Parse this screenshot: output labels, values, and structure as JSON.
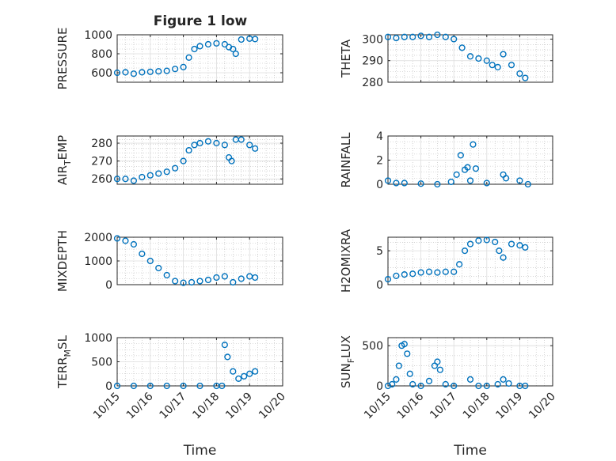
{
  "figure": {
    "title": "Figure 1 low",
    "x_tick_labels": [
      "10/15",
      "10/16",
      "10/17",
      "10/18",
      "10/19",
      "10/20"
    ],
    "xlabel": "Time"
  },
  "colors": {
    "marker": "#0072bd",
    "axes": "#262626",
    "grid": "#b8b8b8",
    "background": "#ffffff"
  },
  "chart_data": [
    {
      "type": "scatter",
      "marker": "open-circle",
      "ylabel": "PRESSURE",
      "ylim": [
        500,
        1000
      ],
      "yticks": [
        600,
        800,
        1000
      ],
      "xlim": [
        "10/15",
        "10/20"
      ],
      "grid": true,
      "x": [
        "10/15 00:00",
        "10/15 06:00",
        "10/15 12:00",
        "10/15 18:00",
        "10/16 00:00",
        "10/16 06:00",
        "10/16 12:00",
        "10/16 18:00",
        "10/17 00:00",
        "10/17 04:00",
        "10/17 08:00",
        "10/17 12:00",
        "10/17 18:00",
        "10/18 00:00",
        "10/18 06:00",
        "10/18 09:00",
        "10/18 12:00",
        "10/18 14:00",
        "10/18 18:00",
        "10/19 00:00",
        "10/19 04:00"
      ],
      "y": [
        600,
        605,
        590,
        605,
        610,
        615,
        620,
        640,
        660,
        760,
        850,
        880,
        900,
        910,
        900,
        870,
        850,
        800,
        950,
        960,
        955
      ]
    },
    {
      "type": "scatter",
      "marker": "open-circle",
      "ylabel": "THETA",
      "ylim": [
        280,
        302
      ],
      "yticks": [
        280,
        290,
        300
      ],
      "xlim": [
        "10/15",
        "10/20"
      ],
      "grid": true,
      "x": [
        "10/15 00:00",
        "10/15 06:00",
        "10/15 12:00",
        "10/15 18:00",
        "10/16 00:00",
        "10/16 06:00",
        "10/16 12:00",
        "10/16 18:00",
        "10/17 00:00",
        "10/17 06:00",
        "10/17 12:00",
        "10/17 18:00",
        "10/18 00:00",
        "10/18 04:00",
        "10/18 08:00",
        "10/18 12:00",
        "10/18 18:00",
        "10/19 00:00",
        "10/19 04:00"
      ],
      "y": [
        301,
        300.5,
        301,
        301,
        301.5,
        301,
        302,
        301,
        300,
        296,
        292,
        291,
        290,
        288,
        287,
        293,
        288,
        284,
        282
      ]
    },
    {
      "type": "scatter",
      "marker": "open-circle",
      "ylabel": "AIR",
      "ylabel_sub": "T",
      "ylabel_tail": "EMP",
      "ylim": [
        257,
        284
      ],
      "yticks": [
        260,
        270,
        280
      ],
      "xlim": [
        "10/15",
        "10/20"
      ],
      "grid": true,
      "x": [
        "10/15 00:00",
        "10/15 06:00",
        "10/15 12:00",
        "10/15 18:00",
        "10/16 00:00",
        "10/16 06:00",
        "10/16 12:00",
        "10/16 18:00",
        "10/17 00:00",
        "10/17 04:00",
        "10/17 08:00",
        "10/17 12:00",
        "10/17 18:00",
        "10/18 00:00",
        "10/18 06:00",
        "10/18 09:00",
        "10/18 11:00",
        "10/18 14:00",
        "10/18 18:00",
        "10/19 00:00",
        "10/19 04:00"
      ],
      "y": [
        260,
        260,
        259,
        261,
        262,
        263,
        264,
        266,
        270,
        276,
        279,
        280,
        281,
        280,
        279,
        272,
        270,
        282,
        282,
        279,
        277
      ]
    },
    {
      "type": "scatter",
      "marker": "open-circle",
      "ylabel": "RAINFALL",
      "ylim": [
        0,
        4
      ],
      "yticks": [
        0,
        2,
        4
      ],
      "xlim": [
        "10/15",
        "10/20"
      ],
      "grid": true,
      "x": [
        "10/15 00:00",
        "10/15 06:00",
        "10/15 12:00",
        "10/16 00:00",
        "10/16 12:00",
        "10/16 22:00",
        "10/17 02:00",
        "10/17 05:00",
        "10/17 08:00",
        "10/17 10:00",
        "10/17 12:00",
        "10/17 14:00",
        "10/17 16:00",
        "10/18 00:00",
        "10/18 12:00",
        "10/18 14:00",
        "10/19 00:00",
        "10/19 06:00"
      ],
      "y": [
        0.3,
        0.1,
        0.1,
        0.05,
        0,
        0.2,
        0.8,
        2.4,
        1.2,
        1.4,
        0.3,
        3.3,
        1.3,
        0.1,
        0.8,
        0.5,
        0.3,
        0
      ]
    },
    {
      "type": "scatter",
      "marker": "open-circle",
      "ylabel": "MIXDEPTH",
      "ylim": [
        0,
        2000
      ],
      "yticks": [
        0,
        1000,
        2000
      ],
      "xlim": [
        "10/15",
        "10/20"
      ],
      "grid": true,
      "x": [
        "10/15 00:00",
        "10/15 06:00",
        "10/15 12:00",
        "10/15 18:00",
        "10/16 00:00",
        "10/16 06:00",
        "10/16 12:00",
        "10/16 18:00",
        "10/17 00:00",
        "10/17 06:00",
        "10/17 12:00",
        "10/17 18:00",
        "10/18 00:00",
        "10/18 06:00",
        "10/18 12:00",
        "10/18 18:00",
        "10/19 00:00",
        "10/19 04:00"
      ],
      "y": [
        1950,
        1850,
        1700,
        1300,
        1000,
        700,
        400,
        150,
        80,
        100,
        150,
        200,
        300,
        350,
        100,
        250,
        350,
        300
      ]
    },
    {
      "type": "scatter",
      "marker": "open-circle",
      "ylabel": "H2OMIXRA",
      "ylim": [
        0,
        7
      ],
      "yticks": [
        0,
        5
      ],
      "xlim": [
        "10/15",
        "10/20"
      ],
      "grid": true,
      "x": [
        "10/15 00:00",
        "10/15 06:00",
        "10/15 12:00",
        "10/15 18:00",
        "10/16 00:00",
        "10/16 06:00",
        "10/16 12:00",
        "10/16 18:00",
        "10/17 00:00",
        "10/17 04:00",
        "10/17 08:00",
        "10/17 12:00",
        "10/17 18:00",
        "10/18 00:00",
        "10/18 06:00",
        "10/18 09:00",
        "10/18 12:00",
        "10/18 18:00",
        "10/19 00:00",
        "10/19 04:00"
      ],
      "y": [
        0.8,
        1.3,
        1.5,
        1.6,
        1.8,
        1.9,
        1.8,
        1.9,
        1.9,
        3,
        5,
        6,
        6.5,
        6.6,
        6.3,
        5,
        4,
        6,
        5.8,
        5.5
      ]
    },
    {
      "type": "scatter",
      "marker": "open-circle",
      "ylabel": "TERR",
      "ylabel_sub": "M",
      "ylabel_tail": "SL",
      "ylim": [
        0,
        1000
      ],
      "yticks": [
        0,
        500,
        1000
      ],
      "xlim": [
        "10/15",
        "10/20"
      ],
      "grid": true,
      "x": [
        "10/15 00:00",
        "10/15 12:00",
        "10/16 00:00",
        "10/16 12:00",
        "10/17 00:00",
        "10/17 12:00",
        "10/18 00:00",
        "10/18 04:00",
        "10/18 06:00",
        "10/18 08:00",
        "10/18 12:00",
        "10/18 16:00",
        "10/18 20:00",
        "10/19 00:00",
        "10/19 04:00"
      ],
      "y": [
        0,
        0,
        0,
        0,
        0,
        0,
        0,
        0,
        850,
        600,
        300,
        150,
        200,
        250,
        300
      ]
    },
    {
      "type": "scatter",
      "marker": "open-circle",
      "ylabel": "SUN",
      "ylabel_sub": "F",
      "ylabel_tail": "LUX",
      "ylim": [
        0,
        600
      ],
      "yticks": [
        0,
        500
      ],
      "xlim": [
        "10/15",
        "10/20"
      ],
      "grid": true,
      "x": [
        "10/15 00:00",
        "10/15 03:00",
        "10/15 06:00",
        "10/15 08:00",
        "10/15 10:00",
        "10/15 12:00",
        "10/15 14:00",
        "10/15 16:00",
        "10/15 18:00",
        "10/16 00:00",
        "10/16 06:00",
        "10/16 10:00",
        "10/16 12:00",
        "10/16 14:00",
        "10/16 18:00",
        "10/17 00:00",
        "10/17 12:00",
        "10/17 18:00",
        "10/18 00:00",
        "10/18 08:00",
        "10/18 12:00",
        "10/18 16:00",
        "10/19 00:00",
        "10/19 04:00"
      ],
      "y": [
        0,
        20,
        80,
        250,
        500,
        520,
        400,
        150,
        20,
        0,
        60,
        250,
        300,
        200,
        20,
        0,
        80,
        0,
        0,
        20,
        80,
        30,
        0,
        0
      ]
    }
  ]
}
